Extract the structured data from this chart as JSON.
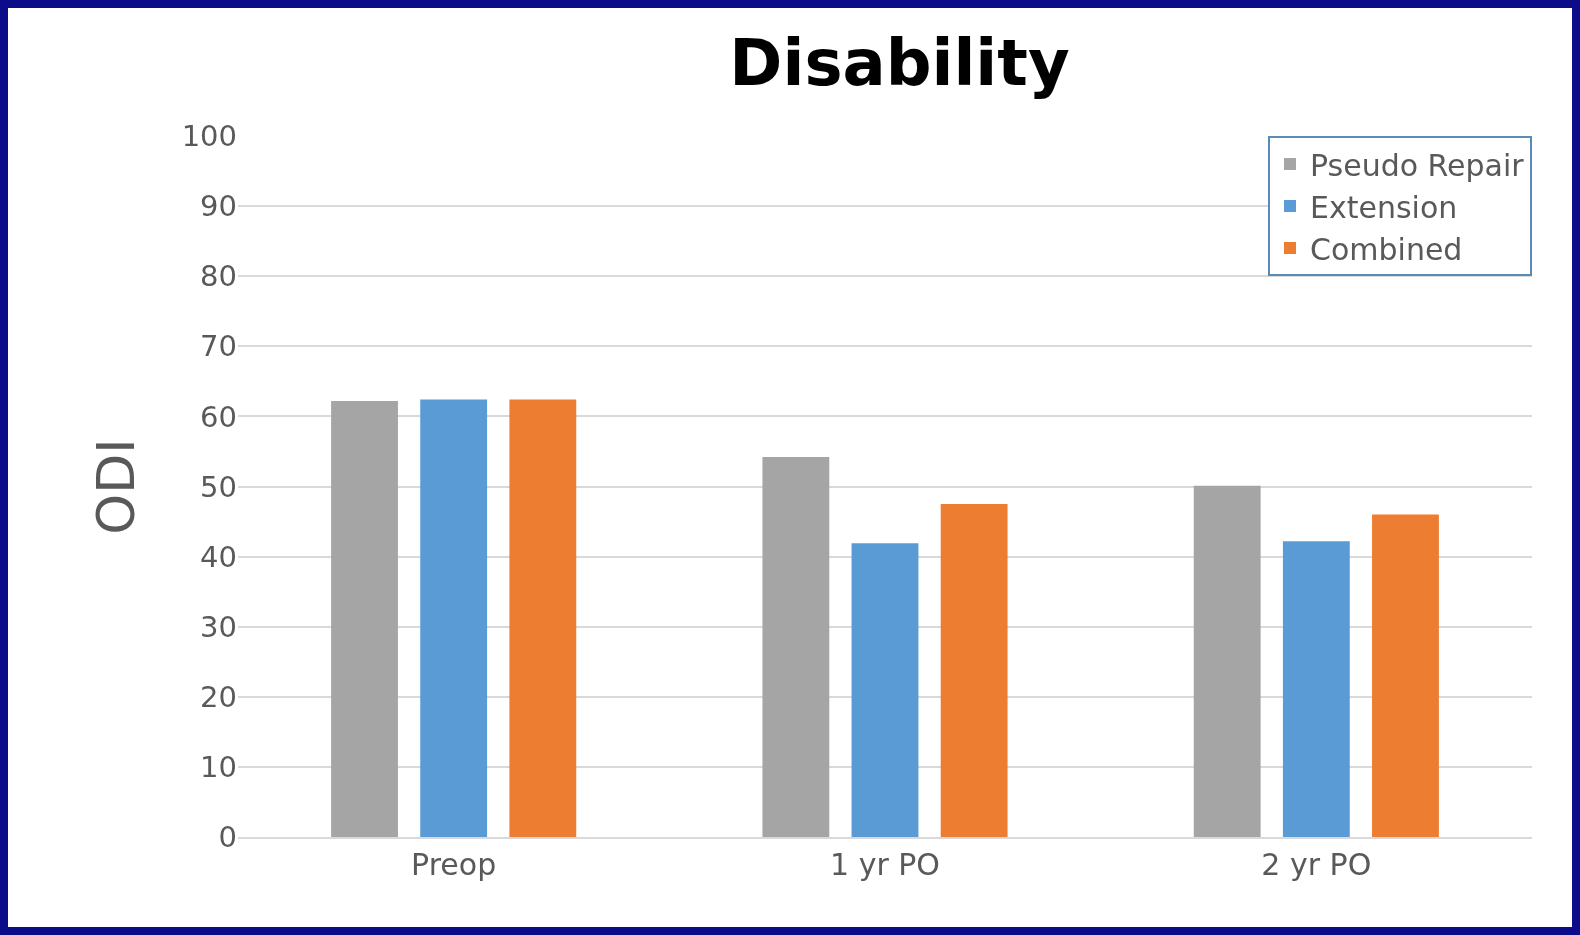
{
  "chart_data": {
    "type": "bar",
    "title": "Disability",
    "ylabel": "ODI",
    "categories": [
      "Preop",
      "1 yr PO",
      "2 yr PO"
    ],
    "series": [
      {
        "name": "Pseudo Repair",
        "color": "#a5a5a5",
        "values": [
          62.2,
          54.2,
          50.1
        ]
      },
      {
        "name": "Extension",
        "color": "#5b9bd5",
        "values": [
          62.4,
          41.9,
          42.2
        ]
      },
      {
        "name": "Combined",
        "color": "#ed7d31",
        "values": [
          62.4,
          47.5,
          46.0
        ]
      }
    ],
    "ylim": [
      0,
      100
    ],
    "yticks": [
      0,
      10,
      20,
      30,
      40,
      50,
      60,
      70,
      80,
      90,
      100
    ],
    "grid": "y",
    "legend": "top right"
  }
}
